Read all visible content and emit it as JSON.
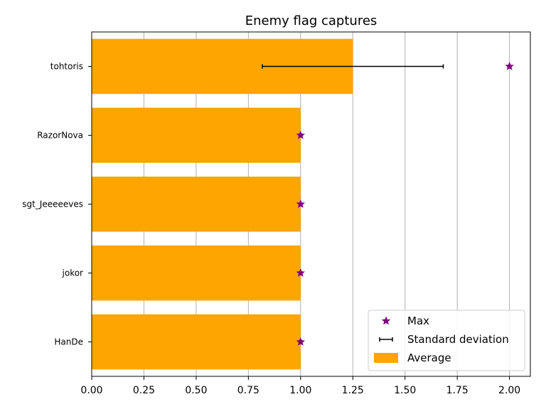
{
  "chart_data": {
    "type": "bar",
    "orientation": "horizontal",
    "title": "Enemy flag captures",
    "xlabel": "",
    "ylabel": "",
    "categories": [
      "tohtoris",
      "RazorNova",
      "sgt_Jeeeeeves",
      "jokor",
      "HanDe"
    ],
    "series": [
      {
        "name": "Average",
        "type": "bar",
        "color": "#FFA500",
        "values": [
          1.25,
          1.0,
          1.0,
          1.0,
          1.0
        ]
      },
      {
        "name": "Standard deviation",
        "type": "errorbar",
        "color": "#000000",
        "center": [
          1.25,
          null,
          null,
          null,
          null
        ],
        "error": [
          0.433,
          null,
          null,
          null,
          null
        ]
      },
      {
        "name": "Max",
        "type": "marker",
        "marker": "star",
        "color": "#800080",
        "values": [
          2.0,
          1.0,
          1.0,
          1.0,
          1.0
        ]
      }
    ],
    "xlim": [
      0.0,
      2.1
    ],
    "xticks": [
      0.0,
      0.25,
      0.5,
      0.75,
      1.0,
      1.25,
      1.5,
      1.75,
      2.0
    ],
    "xtick_labels": [
      "0.00",
      "0.25",
      "0.50",
      "0.75",
      "1.00",
      "1.25",
      "1.50",
      "1.75",
      "2.00"
    ],
    "grid": "vertical",
    "legend": {
      "position": "lower-right",
      "entries": [
        "Max",
        "Standard deviation",
        "Average"
      ]
    }
  }
}
